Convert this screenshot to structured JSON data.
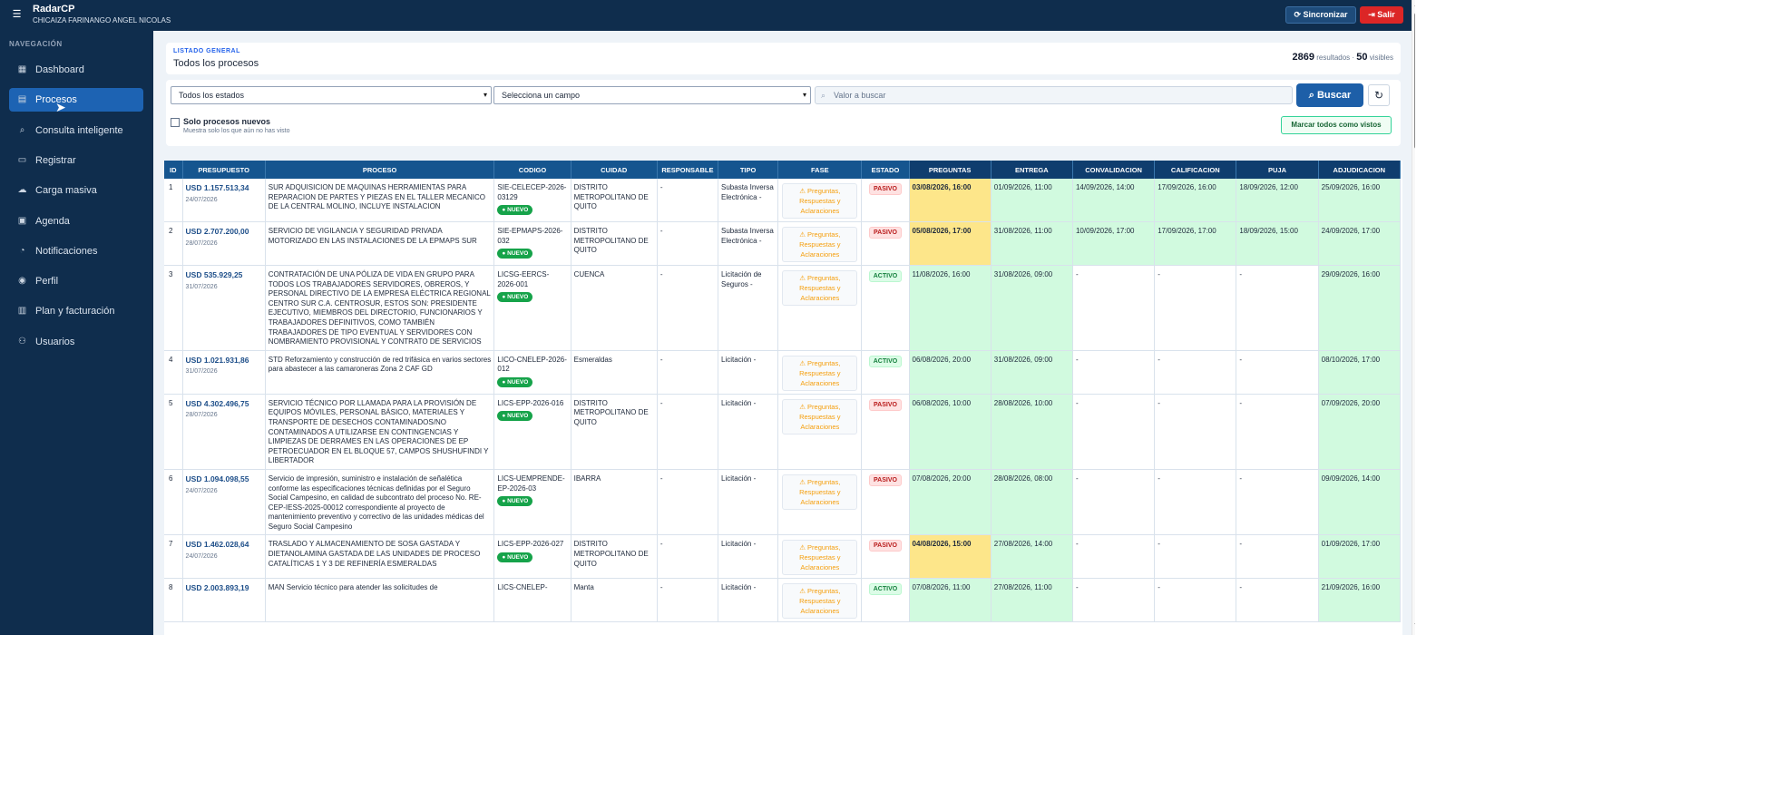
{
  "app": {
    "title": "RadarCP",
    "user": "CHICAIZA FARINANGO ANGEL NICOLAS",
    "menu_icon": "menu-icon",
    "sync_label": "Sincronizar",
    "logout_label": "Salir",
    "colors": {
      "topbar": "#0f2d4d",
      "accent": "#1d63b3",
      "logout": "#dc2626",
      "header": "#15558f"
    }
  },
  "sidebar": {
    "heading": "NAVEGACIÓN",
    "items": [
      {
        "label": "Dashboard",
        "icon": "dashboard-icon",
        "glyph": "▦"
      },
      {
        "label": "Procesos",
        "icon": "list-icon",
        "glyph": "▤",
        "active": true
      },
      {
        "label": "Consulta inteligente",
        "icon": "search-icon",
        "glyph": "⌕"
      },
      {
        "label": "Registrar",
        "icon": "document-icon",
        "glyph": "▭"
      },
      {
        "label": "Carga masiva",
        "icon": "cloud-icon",
        "glyph": "☁"
      },
      {
        "label": "Agenda",
        "icon": "calendar-icon",
        "glyph": "▣"
      },
      {
        "label": "Notificaciones",
        "icon": "bell-icon",
        "glyph": "◔"
      },
      {
        "label": "Perfil",
        "icon": "user-icon",
        "glyph": "◉"
      },
      {
        "label": "Plan y facturación",
        "icon": "billing-icon",
        "glyph": "▥"
      },
      {
        "label": "Usuarios",
        "icon": "users-icon",
        "glyph": "⚇"
      }
    ]
  },
  "summary": {
    "label": "LISTADO GENERAL",
    "title": "Todos los procesos",
    "results_count": "2869",
    "results_label": "resultados ·",
    "visible_count": "50",
    "visible_label": "visibles"
  },
  "filters": {
    "state_select": "Todos los estados",
    "field_select": "Selecciona un campo",
    "search_placeholder": "Valor a buscar",
    "search_label": "Buscar",
    "only_new_label": "Solo procesos nuevos",
    "only_new_hint": "Muestra solo los que aún no has visto",
    "mark_seen_label": "Marcar todos como vistos"
  },
  "table": {
    "headers": [
      "ID",
      "PRESUPUESTO",
      "PROCESO",
      "CODIGO",
      "CUIDAD",
      "RESPONSABLE",
      "TIPO",
      "FASE",
      "ESTADO",
      "PREGUNTAS",
      "ENTREGA",
      "CONVALIDACION",
      "CALIFICACION",
      "PUJA",
      "ADJUDICACION"
    ],
    "new_badge": "● NUEVO",
    "fase_text": "⚠ Preguntas, Respuestas y Aclaraciones",
    "rows": [
      {
        "id": "1",
        "amount": "USD 1.157.513,34",
        "date": "24/07/2026",
        "proceso": "SUR ADQUISICION DE MAQUINAS HERRAMIENTAS PARA REPARACION DE PARTES Y PIEZAS EN EL TALLER MECANICO DE LA CENTRAL MOLINO, INCLUYE INSTALACION",
        "codigo": "SIE-CELECEP-2026-03129",
        "nuevo": true,
        "ciudad": "DISTRITO METROPOLITANO DE QUITO",
        "responsable": "-",
        "tipo": "Subasta Inversa Electrónica -",
        "estado": "PASIVO",
        "preguntas": "03/08/2026, 16:00",
        "preguntas_hl": true,
        "entrega": "01/09/2026, 11:00",
        "convalidacion": "14/09/2026, 14:00",
        "calificacion": "17/09/2026, 16:00",
        "puja": "18/09/2026, 12:00",
        "adjudicacion": "25/09/2026, 16:00"
      },
      {
        "id": "2",
        "amount": "USD 2.707.200,00",
        "date": "28/07/2026",
        "proceso": "SERVICIO DE VIGILANCIA Y SEGURIDAD PRIVADA MOTORIZADO EN LAS INSTALACIONES DE LA EPMAPS SUR",
        "codigo": "SIE-EPMAPS-2026-032",
        "nuevo": true,
        "ciudad": "DISTRITO METROPOLITANO DE QUITO",
        "responsable": "-",
        "tipo": "Subasta Inversa Electrónica -",
        "estado": "PASIVO",
        "preguntas": "05/08/2026, 17:00",
        "preguntas_hl": true,
        "entrega": "31/08/2026, 11:00",
        "convalidacion": "10/09/2026, 17:00",
        "calificacion": "17/09/2026, 17:00",
        "puja": "18/09/2026, 15:00",
        "adjudicacion": "24/09/2026, 17:00"
      },
      {
        "id": "3",
        "amount": "USD 535.929,25",
        "date": "31/07/2026",
        "proceso": "CONTRATACIÓN DE UNA PÓLIZA DE VIDA EN GRUPO PARA TODOS LOS TRABAJADORES SERVIDORES, OBREROS, Y PERSONAL DIRECTIVO DE LA EMPRESA ELÉCTRICA REGIONAL CENTRO SUR C.A. CENTROSUR, ESTOS SON: PRESIDENTE EJECUTIVO, MIEMBROS DEL DIRECTORIO, FUNCIONARIOS Y TRABAJADORES DEFINITIVOS, COMO TAMBIÉN TRABAJADORES DE TIPO EVENTUAL Y SERVIDORES CON NOMBRAMIENTO PROVISIONAL Y CONTRATO DE SERVICIOS",
        "codigo": "LICSG-EERCS-2026-001",
        "nuevo": true,
        "ciudad": "CUENCA",
        "responsable": "-",
        "tipo": "Licitación de Seguros -",
        "estado": "ACTIVO",
        "preguntas": "11/08/2026, 16:00",
        "preguntas_hl": false,
        "entrega": "31/08/2026, 09:00",
        "convalidacion": "-",
        "calificacion": "-",
        "puja": "-",
        "adjudicacion": "29/09/2026, 16:00"
      },
      {
        "id": "4",
        "amount": "USD 1.021.931,86",
        "date": "31/07/2026",
        "proceso": "STD Reforzamiento y construcción de red trifásica en varios sectores para abastecer a las camaroneras Zona 2 CAF GD",
        "codigo": "LICO-CNELEP-2026-012",
        "nuevo": true,
        "ciudad": "Esmeraldas",
        "responsable": "-",
        "tipo": "Licitación -",
        "estado": "ACTIVO",
        "preguntas": "06/08/2026, 20:00",
        "preguntas_hl": false,
        "entrega": "31/08/2026, 09:00",
        "convalidacion": "-",
        "calificacion": "-",
        "puja": "-",
        "adjudicacion": "08/10/2026, 17:00"
      },
      {
        "id": "5",
        "amount": "USD 4.302.496,75",
        "date": "28/07/2026",
        "proceso": "SERVICIO TÉCNICO POR LLAMADA PARA LA PROVISIÓN DE EQUIPOS MÓVILES, PERSONAL BÁSICO, MATERIALES Y TRANSPORTE DE DESECHOS CONTAMINADOS/NO CONTAMINADOS A UTILIZARSE EN CONTINGENCIAS Y LIMPIEZAS DE DERRAMES EN LAS OPERACIONES DE EP PETROECUADOR EN EL BLOQUE 57, CAMPOS SHUSHUFINDI Y LIBERTADOR",
        "codigo": "LICS-EPP-2026-016",
        "nuevo": true,
        "ciudad": "DISTRITO METROPOLITANO DE QUITO",
        "responsable": "-",
        "tipo": "Licitación -",
        "estado": "PASIVO",
        "preguntas": "06/08/2026, 10:00",
        "preguntas_hl": false,
        "entrega": "28/08/2026, 10:00",
        "convalidacion": "-",
        "calificacion": "-",
        "puja": "-",
        "adjudicacion": "07/09/2026, 20:00"
      },
      {
        "id": "6",
        "amount": "USD 1.094.098,55",
        "date": "24/07/2026",
        "proceso": "Servicio de impresión, suministro e instalación de señalética conforme las especificaciones técnicas definidas por el Seguro Social Campesino, en calidad de subcontrato del proceso No. RE-CEP-IESS-2025-00012 correspondiente al proyecto de mantenimiento preventivo y correctivo de las unidades médicas del Seguro Social Campesino",
        "codigo": "LICS-UEMPRENDE-EP-2026-03",
        "nuevo": true,
        "ciudad": "IBARRA",
        "responsable": "-",
        "tipo": "Licitación -",
        "estado": "PASIVO",
        "preguntas": "07/08/2026, 20:00",
        "preguntas_hl": false,
        "entrega": "28/08/2026, 08:00",
        "convalidacion": "-",
        "calificacion": "-",
        "puja": "-",
        "adjudicacion": "09/09/2026, 14:00"
      },
      {
        "id": "7",
        "amount": "USD 1.462.028,64",
        "date": "24/07/2026",
        "proceso": "TRASLADO Y ALMACENAMIENTO DE SOSA GASTADA Y DIETANOLAMINA GASTADA DE LAS UNIDADES DE PROCESO CATALÍTICAS 1 Y 3 DE REFINERÍA ESMERALDAS",
        "codigo": "LICS-EPP-2026-027",
        "nuevo": true,
        "ciudad": "DISTRITO METROPOLITANO DE QUITO",
        "responsable": "-",
        "tipo": "Licitación -",
        "estado": "PASIVO",
        "preguntas": "04/08/2026, 15:00",
        "preguntas_hl": true,
        "entrega": "27/08/2026, 14:00",
        "convalidacion": "-",
        "calificacion": "-",
        "puja": "-",
        "adjudicacion": "01/09/2026, 17:00"
      },
      {
        "id": "8",
        "amount": "USD 2.003.893,19",
        "date": "",
        "proceso": "MAN Servicio técnico para atender las solicitudes de",
        "codigo": "LICS-CNELEP-",
        "nuevo": false,
        "ciudad": "Manta",
        "responsable": "-",
        "tipo": "Licitación -",
        "estado": "ACTIVO",
        "preguntas": "07/08/2026, 11:00",
        "preguntas_hl": false,
        "entrega": "27/08/2026, 11:00",
        "convalidacion": "-",
        "calificacion": "-",
        "puja": "-",
        "adjudicacion": "21/09/2026, 16:00"
      }
    ]
  }
}
